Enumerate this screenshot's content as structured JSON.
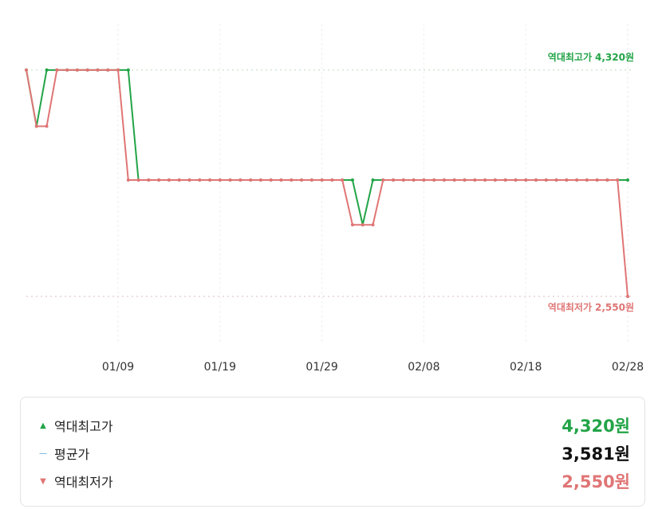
{
  "chart_data": {
    "type": "line",
    "categories": [
      null,
      null,
      null,
      null,
      null,
      null,
      null,
      null,
      null,
      "01/09",
      null,
      null,
      null,
      null,
      null,
      null,
      null,
      null,
      null,
      "01/19",
      null,
      null,
      null,
      null,
      null,
      null,
      null,
      null,
      null,
      "01/29",
      null,
      null,
      null,
      null,
      null,
      null,
      null,
      null,
      null,
      "02/08",
      null,
      null,
      null,
      null,
      null,
      null,
      null,
      null,
      null,
      "02/18",
      null,
      null,
      null,
      null,
      null,
      null,
      null,
      null,
      null,
      "02/28"
    ],
    "series": [
      {
        "color": "#22a447",
        "values": [
          4320,
          3880,
          4320,
          4320,
          4320,
          4320,
          4320,
          4320,
          4320,
          4320,
          4320,
          3460,
          3460,
          3460,
          3460,
          3460,
          3460,
          3460,
          3460,
          3460,
          3460,
          3460,
          3460,
          3460,
          3460,
          3460,
          3460,
          3460,
          3460,
          3460,
          3460,
          3460,
          3460,
          3110,
          3460,
          3460,
          3460,
          3460,
          3460,
          3460,
          3460,
          3460,
          3460,
          3460,
          3460,
          3460,
          3460,
          3460,
          3460,
          3460,
          3460,
          3460,
          3460,
          3460,
          3460,
          3460,
          3460,
          3460,
          3460,
          3460
        ]
      },
      {
        "color": "#e07575",
        "values": [
          4320,
          3880,
          3880,
          4320,
          4320,
          4320,
          4320,
          4320,
          4320,
          4320,
          3460,
          3460,
          3460,
          3460,
          3460,
          3460,
          3460,
          3460,
          3460,
          3460,
          3460,
          3460,
          3460,
          3460,
          3460,
          3460,
          3460,
          3460,
          3460,
          3460,
          3460,
          3460,
          3110,
          3110,
          3110,
          3460,
          3460,
          3460,
          3460,
          3460,
          3460,
          3460,
          3460,
          3460,
          3460,
          3460,
          3460,
          3460,
          3460,
          3460,
          3460,
          3460,
          3460,
          3460,
          3460,
          3460,
          3460,
          3460,
          3460,
          2550
        ]
      }
    ],
    "ylim": [
      2190,
      4680
    ],
    "summary": [
      {
        "label": "역대최고가",
        "value": 4320,
        "value_label": "4,320원",
        "color": "#22a447",
        "marker": "▲"
      },
      {
        "label": "평균가",
        "value": 3581,
        "value_label": "3,581원",
        "color": "#3a9ad9",
        "marker": "—"
      },
      {
        "label": "역대최저가",
        "value": 2550,
        "value_label": "2,550원",
        "color": "#e07575",
        "marker": "▼"
      }
    ]
  }
}
